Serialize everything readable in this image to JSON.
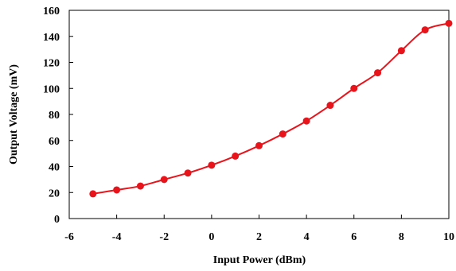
{
  "chart_data": {
    "type": "line",
    "xlabel": "Input Power (dBm)",
    "ylabel": "Output Voltage (mV)",
    "xlim": [
      -6,
      10
    ],
    "ylim": [
      0,
      160
    ],
    "xticks": [
      "-6",
      "-4",
      "-2",
      "0",
      "2",
      "4",
      "6",
      "8",
      "10"
    ],
    "yticks": [
      "0",
      "20",
      "40",
      "60",
      "80",
      "100",
      "120",
      "140",
      "160"
    ],
    "grid": false,
    "legend": "none",
    "series": [
      {
        "color": "#e8141c",
        "x": [
          -5,
          -4,
          -3,
          -2,
          -1,
          0,
          1,
          2,
          3,
          4,
          5,
          6,
          7,
          8,
          9,
          10
        ],
        "y": [
          19,
          22,
          25,
          30,
          35,
          41,
          48,
          56,
          65,
          75,
          87,
          100,
          112,
          129,
          145,
          150
        ]
      }
    ]
  }
}
